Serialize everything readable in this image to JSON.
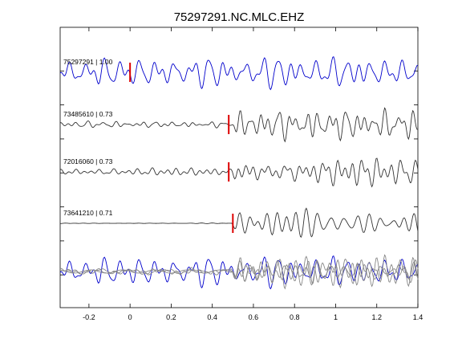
{
  "chart_data": {
    "type": "line",
    "title": "75297291.NC.MLC.EHZ",
    "xlabel": "",
    "ylabel": "",
    "xlim": [
      -0.34,
      1.4
    ],
    "x_ticks": [
      -0.2,
      0,
      0.2,
      0.4,
      0.6,
      0.8,
      1,
      1.2,
      1.4
    ],
    "x_tick_labels": [
      "-0.2",
      "0",
      "0.2",
      "0.4",
      "0.6",
      "0.8",
      "1",
      "1.2",
      "1.4"
    ],
    "y_ticks_unlabeled": 7,
    "grid": false,
    "series": [
      {
        "name": "75297291 | 1.00",
        "pick_time": 0.0,
        "color": "#0000cc",
        "onset": -0.34
      },
      {
        "name": "73485610 | 0.73",
        "pick_time": 0.48,
        "color": "#333333",
        "onset": 0.49
      },
      {
        "name": "72016060 | 0.73",
        "pick_time": 0.48,
        "color": "#333333",
        "onset": 0.49
      },
      {
        "name": "73641210 | 0.71",
        "pick_time": 0.5,
        "color": "#333333",
        "onset": 0.49
      }
    ],
    "overlay": {
      "colors": [
        "#0000cc",
        "#888888",
        "#888888",
        "#888888"
      ]
    },
    "pick_color": "#dd0000"
  }
}
